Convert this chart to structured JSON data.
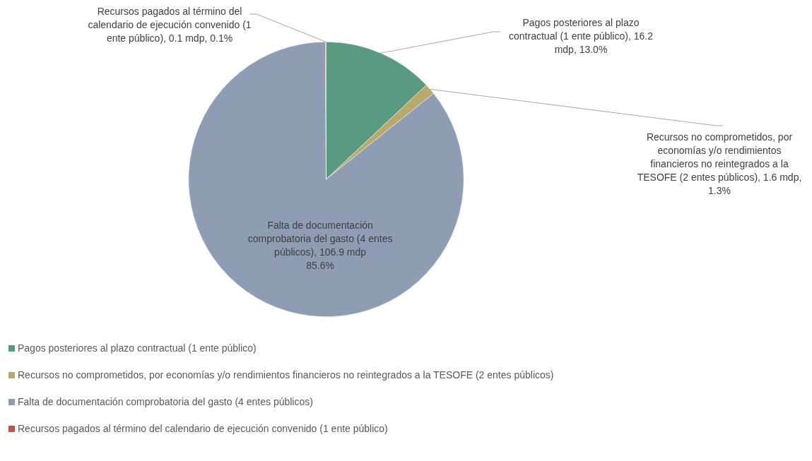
{
  "chart_data": {
    "type": "pie",
    "categories": [
      "Pagos posteriores al plazo contractual (1 ente público)",
      "Recursos no comprometidos, por economías y/o rendimientos financieros no reintegrados a la TESOFE (2 entes públicos)",
      "Falta de documentación comprobatoria del gasto (4 entes públicos)",
      "Recursos pagados al término del calendario de ejecución convenido (1 ente público)"
    ],
    "values": [
      16.2,
      1.6,
      106.9,
      0.1
    ],
    "colors": [
      "#5a9a80",
      "#b9a96c",
      "#8e9db4",
      "#c0504d"
    ],
    "value_labels": [
      "Pagos posteriores al plazo contractual (1 ente público), 16.2 mdp, 13.0%",
      "Recursos no comprometidos, por economías y/o rendimientos financieros no reintegrados a la TESOFE (2 entes públicos), 1.6 mdp, 1.3%",
      "Falta de documentación comprobatoria del gasto (4 entes públicos), 106.9 mdp\n85.6%",
      "Recursos pagados al término del calendario de ejecución convenido (1 ente público), 0.1 mdp, 0.1%"
    ],
    "legend": "bottom"
  }
}
